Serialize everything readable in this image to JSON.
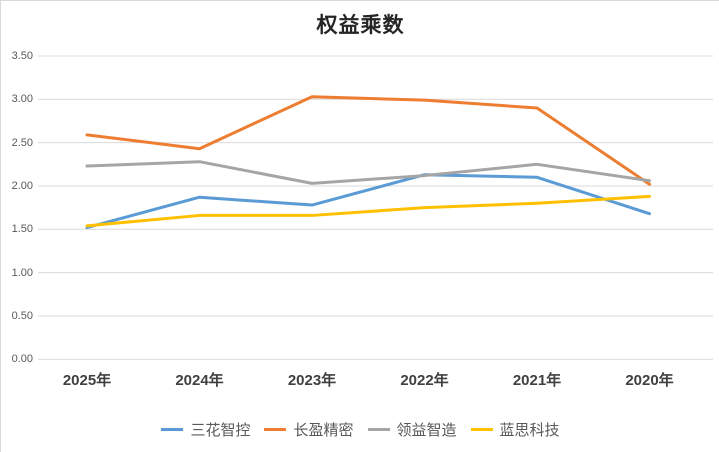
{
  "chart_data": {
    "type": "line",
    "title": "权益乘数",
    "categories": [
      "2025年",
      "2024年",
      "2023年",
      "2022年",
      "2021年",
      "2020年"
    ],
    "series": [
      {
        "name": "三花智控",
        "color": "#5B9BD5",
        "values": [
          1.52,
          1.87,
          1.78,
          2.13,
          2.1,
          1.68
        ]
      },
      {
        "name": "长盈精密",
        "color": "#ED7D31",
        "values": [
          2.59,
          2.43,
          3.03,
          2.99,
          2.9,
          2.02
        ]
      },
      {
        "name": "领益智造",
        "color": "#A5A5A5",
        "values": [
          2.23,
          2.28,
          2.03,
          2.12,
          2.25,
          2.06
        ]
      },
      {
        "name": "蓝思科技",
        "color": "#FFC000",
        "values": [
          1.54,
          1.66,
          1.66,
          1.75,
          1.8,
          1.88
        ]
      }
    ],
    "xlabel": "",
    "ylabel": "",
    "ylim": [
      0.0,
      3.5
    ],
    "ytick_step": 0.5,
    "ytick_format": "0.00",
    "grid": true,
    "gridline_color": "#D9D9D9",
    "legend_position": "bottom"
  },
  "styles": {
    "title_color": "#262626",
    "axis_text_color": "#595959",
    "category_text_color": "#404040",
    "chart_border_color": "#D9D9D9",
    "background": "#FFFFFF"
  }
}
